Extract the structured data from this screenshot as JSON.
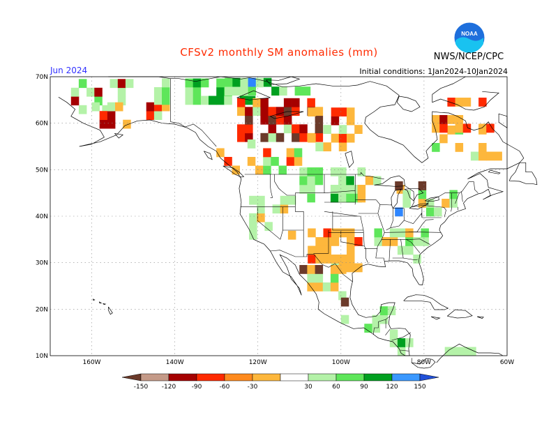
{
  "header": {
    "title": "CFSv2 monthly SM anomalies (mm)",
    "agency": "NWS/NCEP/CPC",
    "month": "Jun 2024",
    "initial_conditions": "Initial conditions: 1Jan2024-10Jan2024"
  },
  "logo": {
    "text": "NOAA"
  },
  "map": {
    "projection": "equirectangular",
    "lon_range": [
      -170,
      -60
    ],
    "lat_range": [
      10,
      70
    ],
    "lat_ticks": [
      70,
      60,
      50,
      40,
      30,
      20,
      10
    ],
    "lat_tick_labels": [
      "70N",
      "60N",
      "50N",
      "40N",
      "30N",
      "20N",
      "10N"
    ],
    "lon_ticks": [
      -160,
      -140,
      -120,
      -100,
      -80,
      -60
    ],
    "lon_tick_labels": [
      "160W",
      "140W",
      "120W",
      "100W",
      "80W",
      "60W"
    ],
    "gridlines": true
  },
  "colorbar": {
    "labels": [
      "-150",
      "-120",
      "-90",
      "-60",
      "-30",
      "30",
      "60",
      "90",
      "120",
      "150"
    ],
    "colors": [
      "#6b3a2a",
      "#c49a88",
      "#a50000",
      "#ff2a00",
      "#ff8a1e",
      "#fdb73c",
      "#ffffff",
      "#b4f2a8",
      "#5ee65a",
      "#00a020",
      "#3a98ff",
      "#2050d8"
    ]
  },
  "anomaly_colors": {
    "dry_strong": "#6b3a2a",
    "dry_very": "#a50000",
    "dry_mod": "#ff2a00",
    "dry_light": "#fdb73c",
    "wet_light": "#b4f2a8",
    "wet_mod": "#5ee65a",
    "wet_strong": "#00a020",
    "wet_very": "#2e86ff"
  }
}
